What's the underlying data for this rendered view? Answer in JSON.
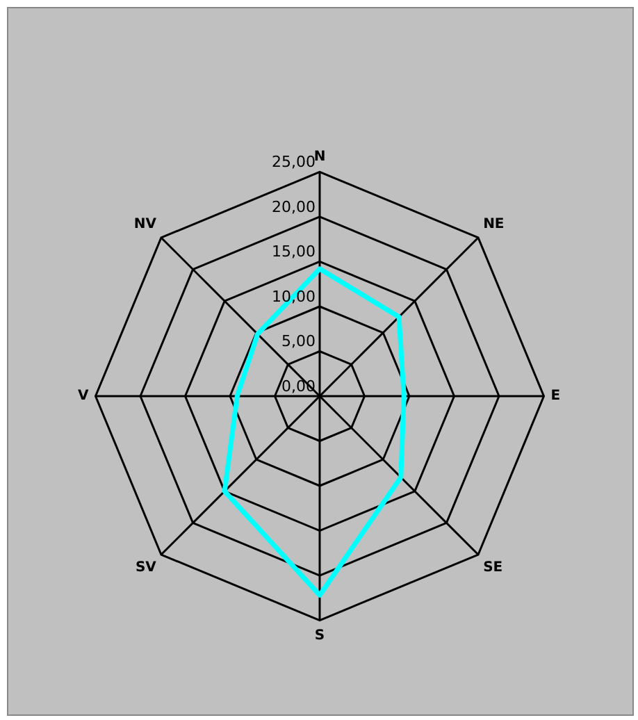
{
  "chart_data": {
    "type": "radar",
    "categories": [
      "N",
      "NE",
      "E",
      "SE",
      "S",
      "SV",
      "V",
      "NV"
    ],
    "series": [
      {
        "color": "#00ffff",
        "values": [
          14.2,
          12.5,
          9.4,
          12.8,
          22.2,
          15,
          9.2,
          9.8
        ]
      }
    ],
    "ylim": [
      0,
      25
    ],
    "yticks": [
      {
        "value": 0,
        "label": "0,00"
      },
      {
        "value": 5,
        "label": "5,00"
      },
      {
        "value": 10,
        "label": "10,00"
      },
      {
        "value": 15,
        "label": "15,00"
      },
      {
        "value": 20,
        "label": "20,00"
      },
      {
        "value": 25,
        "label": "25,00"
      }
    ],
    "grid": true,
    "legend": false,
    "marker": "none"
  }
}
